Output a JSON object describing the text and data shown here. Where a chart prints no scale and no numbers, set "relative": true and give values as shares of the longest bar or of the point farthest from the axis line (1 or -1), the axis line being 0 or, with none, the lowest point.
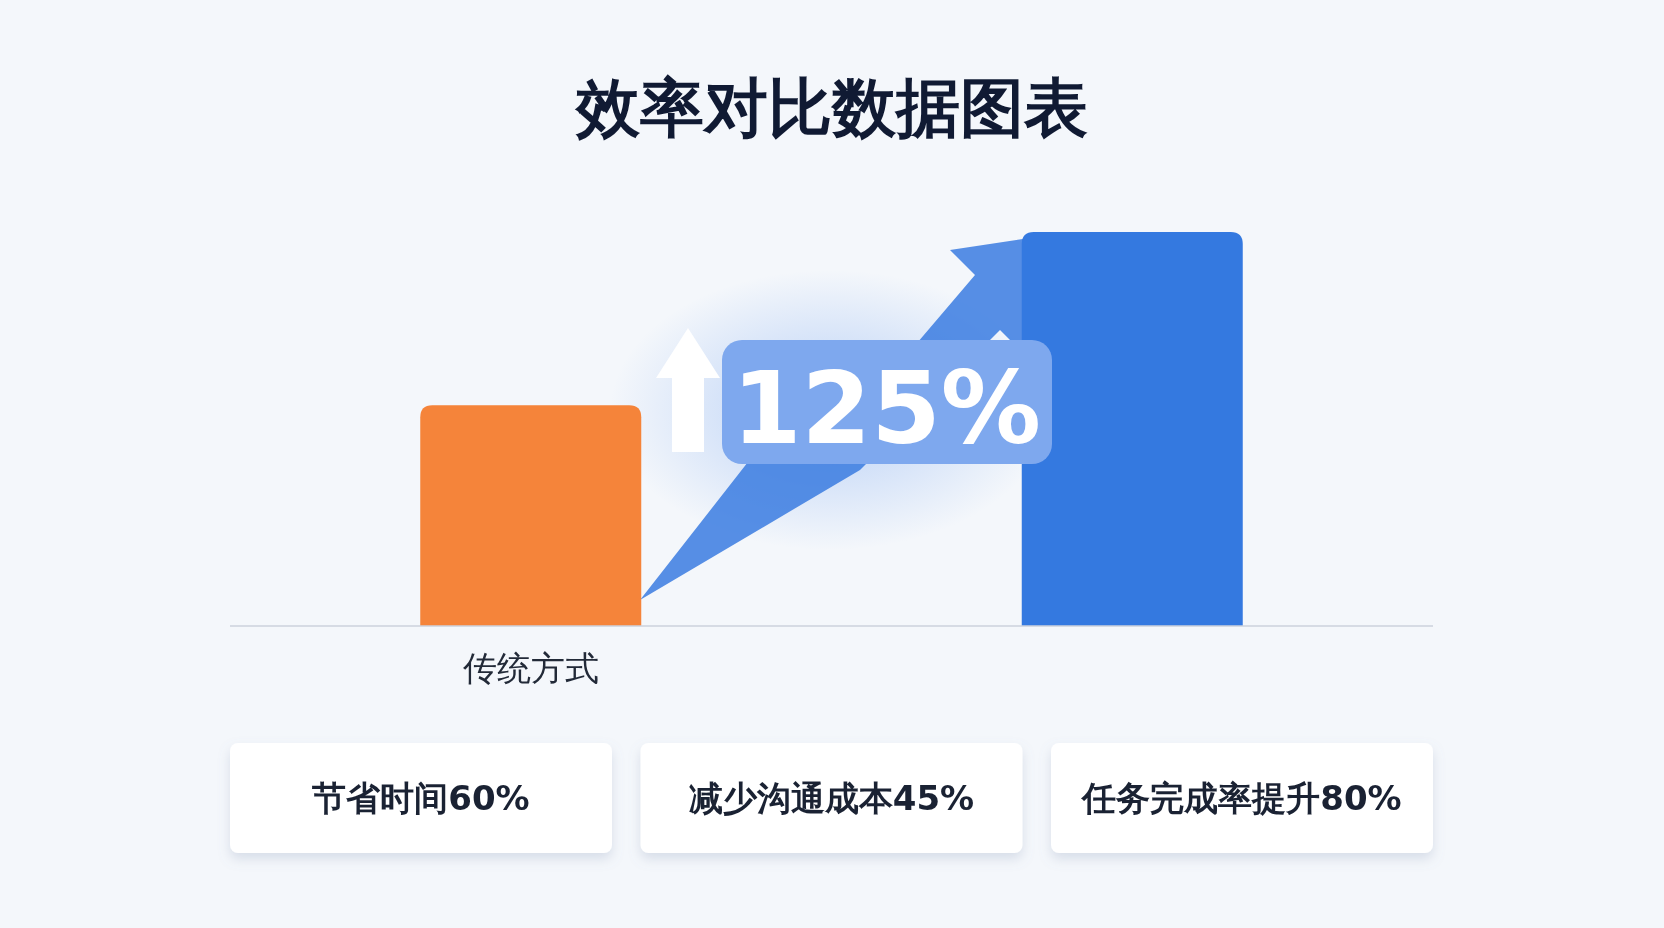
{
  "chart_data": {
    "type": "bar",
    "title": "效率对比数据图表",
    "categories": [
      "传统方式",
      null
    ],
    "values": [
      0.56,
      1
    ],
    "colors": [
      "#f5843a",
      "#3479e0"
    ],
    "relative": true,
    "annotations": [
      "125%",
      "节省时间60%",
      "减少沟通成本45%",
      "任务完成率提升80%"
    ]
  }
}
